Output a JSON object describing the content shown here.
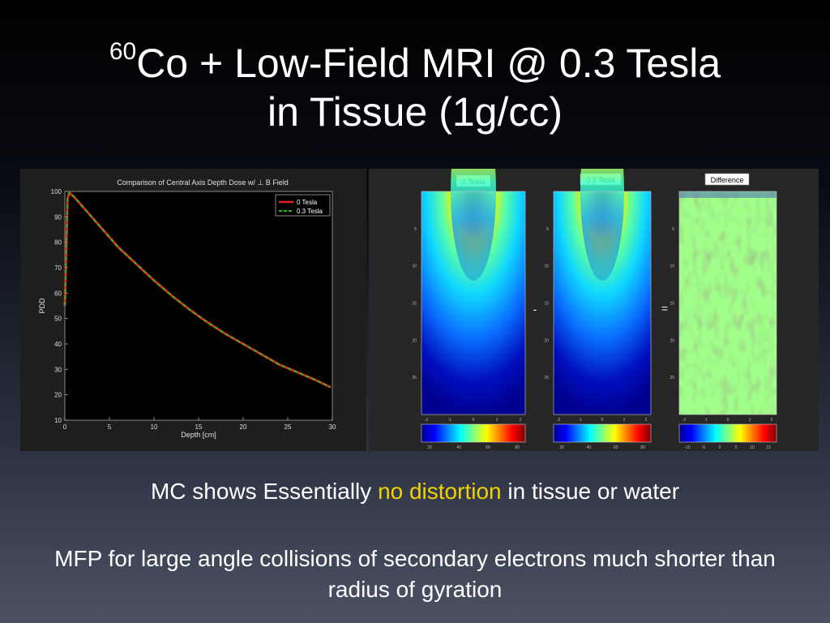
{
  "slide": {
    "title_sup": "60",
    "title_line1": "Co + Low-Field MRI @ 0.3 Tesla",
    "title_line2": "in Tissue (1g/cc)",
    "caption_part1": "MC shows Essentially ",
    "caption_highlight": "no distortion",
    "caption_part2": " in tissue or water",
    "caption_line2": "MFP for large angle collisions of secondary electrons much shorter than radius of gyration",
    "colors": {
      "highlight": "#f2d200",
      "line_0T": "#e02020",
      "line_03T": "#20c020"
    }
  },
  "chart_data": [
    {
      "type": "line",
      "title": "Comparison of Central Axis Depth Dose w/ ⊥ B Field",
      "xlabel": "Depth [cm]",
      "ylabel": "PDD",
      "xlim": [
        0,
        30
      ],
      "ylim": [
        10,
        100
      ],
      "xticks": [
        0,
        5,
        10,
        15,
        20,
        25,
        30
      ],
      "yticks": [
        10,
        20,
        30,
        40,
        50,
        60,
        70,
        80,
        90,
        100
      ],
      "legend_position": "top-right",
      "series": [
        {
          "name": "0 Tesla",
          "color": "#e02020",
          "dashed": false,
          "x": [
            0,
            0.3,
            0.5,
            1,
            2,
            3,
            4,
            5,
            6,
            8,
            10,
            12,
            14,
            16,
            18,
            20,
            22,
            24,
            26,
            28,
            29.8
          ],
          "y": [
            55,
            97,
            99.5,
            98,
            94,
            90,
            86,
            82,
            78,
            71.5,
            65,
            59,
            53.5,
            48.5,
            44,
            40,
            36,
            32,
            29,
            26,
            23
          ]
        },
        {
          "name": "0.3 Tesla",
          "color": "#20c020",
          "dashed": true,
          "x": [
            0,
            0.3,
            0.5,
            1,
            2,
            3,
            4,
            5,
            6,
            8,
            10,
            12,
            14,
            16,
            18,
            20,
            22,
            24,
            26,
            28,
            29.8
          ],
          "y": [
            55,
            97,
            99.5,
            98,
            94,
            90,
            86,
            82,
            78,
            71.5,
            65,
            59,
            53.5,
            48.5,
            44,
            40,
            36,
            32,
            29,
            26,
            23
          ]
        }
      ]
    },
    {
      "type": "heatmap",
      "panels": [
        {
          "title": "0 Tesla",
          "yticks": [
            "5",
            "10",
            "15",
            "20",
            "25"
          ],
          "xticks": [
            "-2",
            "-1",
            "0",
            "1",
            "2"
          ],
          "colorbar_ticks": [
            "20",
            "40",
            "60",
            "80"
          ]
        },
        {
          "title": "0.3 Tesla",
          "yticks": [
            "5",
            "10",
            "15",
            "20",
            "25"
          ],
          "xticks": [
            "-2",
            "-1",
            "0",
            "1",
            "2"
          ],
          "colorbar_ticks": [
            "20",
            "40",
            "60",
            "80"
          ]
        },
        {
          "title": "Difference",
          "yticks": [
            "5",
            "10",
            "15",
            "20",
            "25"
          ],
          "xticks": [
            "-2",
            "-1",
            "0",
            "1",
            "2"
          ],
          "colorbar_ticks": [
            "-10",
            "-5",
            "0",
            "5",
            "10",
            "15"
          ]
        }
      ],
      "operators": [
        "-",
        "="
      ]
    }
  ]
}
